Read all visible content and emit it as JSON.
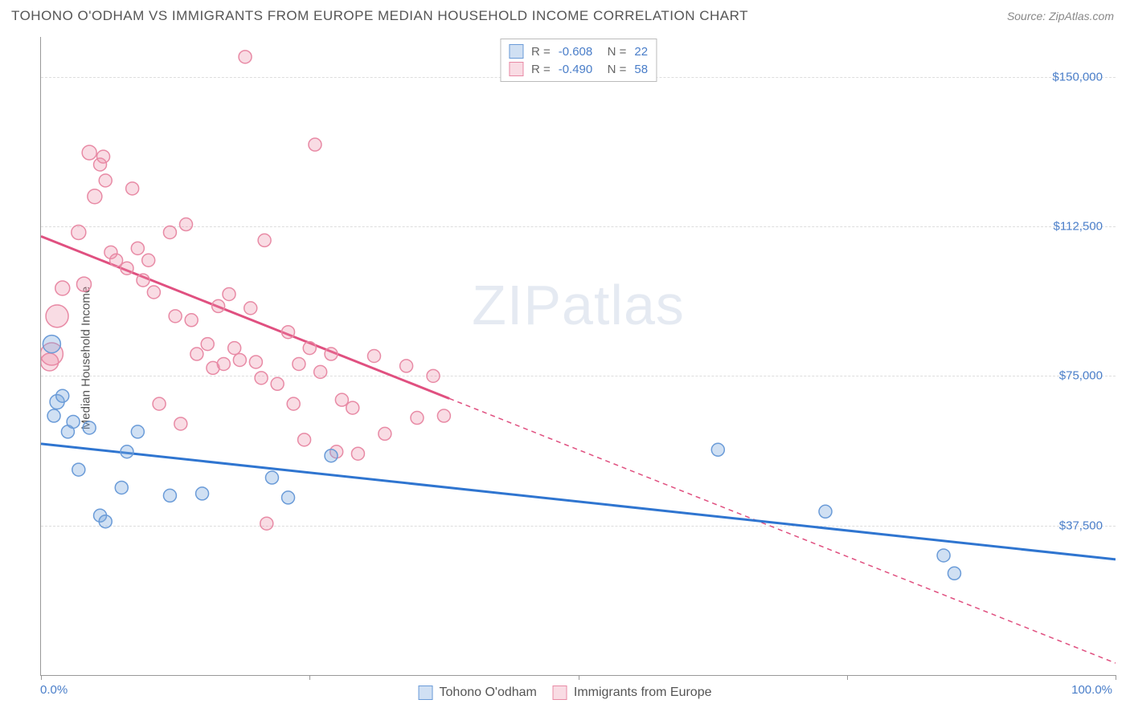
{
  "header": {
    "title": "TOHONO O'ODHAM VS IMMIGRANTS FROM EUROPE MEDIAN HOUSEHOLD INCOME CORRELATION CHART",
    "source_label": "Source: ",
    "source_value": "ZipAtlas.com"
  },
  "watermark": {
    "part1": "ZIP",
    "part2": "atlas"
  },
  "chart": {
    "type": "scatter",
    "xlim": [
      0,
      100
    ],
    "ylim": [
      0,
      160000
    ],
    "y_gridlines": [
      37500,
      75000,
      112500,
      150000
    ],
    "y_tick_labels": [
      "$37,500",
      "$75,000",
      "$112,500",
      "$150,000"
    ],
    "x_tick_labels": {
      "min": "0.0%",
      "max": "100.0%"
    },
    "x_minor_ticks": [
      0,
      25,
      50,
      75,
      100
    ],
    "y_axis_label": "Median Household Income",
    "background_color": "#ffffff",
    "grid_color": "#dddddd",
    "axis_color": "#999999",
    "ytick_color": "#4a7ec9",
    "series": [
      {
        "name": "Tohono O'odham",
        "color_fill": "rgba(120,165,220,0.35)",
        "color_stroke": "#6a9bd8",
        "trend_color": "#2f75d0",
        "R": "-0.608",
        "N": "22",
        "trend": {
          "x1": 0,
          "y1": 58000,
          "x2": 100,
          "y2": 29000,
          "solid_until_x": 100
        },
        "points": [
          {
            "x": 1.0,
            "y": 83000,
            "r": 11
          },
          {
            "x": 1.5,
            "y": 68500,
            "r": 9
          },
          {
            "x": 1.2,
            "y": 65000,
            "r": 8
          },
          {
            "x": 2.0,
            "y": 70000,
            "r": 8
          },
          {
            "x": 2.5,
            "y": 61000,
            "r": 8
          },
          {
            "x": 3.0,
            "y": 63500,
            "r": 8
          },
          {
            "x": 3.5,
            "y": 51500,
            "r": 8
          },
          {
            "x": 4.5,
            "y": 62000,
            "r": 8
          },
          {
            "x": 5.5,
            "y": 40000,
            "r": 8
          },
          {
            "x": 6.0,
            "y": 38500,
            "r": 8
          },
          {
            "x": 7.5,
            "y": 47000,
            "r": 8
          },
          {
            "x": 8.0,
            "y": 56000,
            "r": 8
          },
          {
            "x": 9.0,
            "y": 61000,
            "r": 8
          },
          {
            "x": 12.0,
            "y": 45000,
            "r": 8
          },
          {
            "x": 15.0,
            "y": 45500,
            "r": 8
          },
          {
            "x": 21.5,
            "y": 49500,
            "r": 8
          },
          {
            "x": 23.0,
            "y": 44500,
            "r": 8
          },
          {
            "x": 27.0,
            "y": 55000,
            "r": 8
          },
          {
            "x": 63.0,
            "y": 56500,
            "r": 8
          },
          {
            "x": 73.0,
            "y": 41000,
            "r": 8
          },
          {
            "x": 84.0,
            "y": 30000,
            "r": 8
          },
          {
            "x": 85.0,
            "y": 25500,
            "r": 8
          }
        ]
      },
      {
        "name": "Immigrants from Europe",
        "color_fill": "rgba(235,140,165,0.30)",
        "color_stroke": "#e88aa5",
        "trend_color": "#e05080",
        "R": "-0.490",
        "N": "58",
        "trend": {
          "x1": 0,
          "y1": 110000,
          "x2": 100,
          "y2": 3000,
          "solid_until_x": 38
        },
        "points": [
          {
            "x": 1.0,
            "y": 80500,
            "r": 14
          },
          {
            "x": 0.8,
            "y": 78500,
            "r": 11
          },
          {
            "x": 1.5,
            "y": 90000,
            "r": 14
          },
          {
            "x": 2.0,
            "y": 97000,
            "r": 9
          },
          {
            "x": 3.5,
            "y": 111000,
            "r": 9
          },
          {
            "x": 4.0,
            "y": 98000,
            "r": 9
          },
          {
            "x": 4.5,
            "y": 131000,
            "r": 9
          },
          {
            "x": 5.0,
            "y": 120000,
            "r": 9
          },
          {
            "x": 5.5,
            "y": 128000,
            "r": 8
          },
          {
            "x": 5.8,
            "y": 130000,
            "r": 8
          },
          {
            "x": 6.0,
            "y": 124000,
            "r": 8
          },
          {
            "x": 6.5,
            "y": 106000,
            "r": 8
          },
          {
            "x": 7.0,
            "y": 104000,
            "r": 8
          },
          {
            "x": 8.0,
            "y": 102000,
            "r": 8
          },
          {
            "x": 8.5,
            "y": 122000,
            "r": 8
          },
          {
            "x": 9.0,
            "y": 107000,
            "r": 8
          },
          {
            "x": 9.5,
            "y": 99000,
            "r": 8
          },
          {
            "x": 10.0,
            "y": 104000,
            "r": 8
          },
          {
            "x": 10.5,
            "y": 96000,
            "r": 8
          },
          {
            "x": 11.0,
            "y": 68000,
            "r": 8
          },
          {
            "x": 12.0,
            "y": 111000,
            "r": 8
          },
          {
            "x": 12.5,
            "y": 90000,
            "r": 8
          },
          {
            "x": 13.0,
            "y": 63000,
            "r": 8
          },
          {
            "x": 13.5,
            "y": 113000,
            "r": 8
          },
          {
            "x": 14.0,
            "y": 89000,
            "r": 8
          },
          {
            "x": 14.5,
            "y": 80500,
            "r": 8
          },
          {
            "x": 15.5,
            "y": 83000,
            "r": 8
          },
          {
            "x": 16.0,
            "y": 77000,
            "r": 8
          },
          {
            "x": 16.5,
            "y": 92500,
            "r": 8
          },
          {
            "x": 17.0,
            "y": 78000,
            "r": 8
          },
          {
            "x": 17.5,
            "y": 95500,
            "r": 8
          },
          {
            "x": 18.0,
            "y": 82000,
            "r": 8
          },
          {
            "x": 18.5,
            "y": 79000,
            "r": 8
          },
          {
            "x": 19.0,
            "y": 155000,
            "r": 8
          },
          {
            "x": 19.5,
            "y": 92000,
            "r": 8
          },
          {
            "x": 20.0,
            "y": 78500,
            "r": 8
          },
          {
            "x": 20.5,
            "y": 74500,
            "r": 8
          },
          {
            "x": 20.8,
            "y": 109000,
            "r": 8
          },
          {
            "x": 21.0,
            "y": 38000,
            "r": 8
          },
          {
            "x": 22.0,
            "y": 73000,
            "r": 8
          },
          {
            "x": 23.0,
            "y": 86000,
            "r": 8
          },
          {
            "x": 23.5,
            "y": 68000,
            "r": 8
          },
          {
            "x": 24.0,
            "y": 78000,
            "r": 8
          },
          {
            "x": 24.5,
            "y": 59000,
            "r": 8
          },
          {
            "x": 25.0,
            "y": 82000,
            "r": 8
          },
          {
            "x": 25.5,
            "y": 133000,
            "r": 8
          },
          {
            "x": 26.0,
            "y": 76000,
            "r": 8
          },
          {
            "x": 27.0,
            "y": 80500,
            "r": 8
          },
          {
            "x": 27.5,
            "y": 56000,
            "r": 8
          },
          {
            "x": 28.0,
            "y": 69000,
            "r": 8
          },
          {
            "x": 29.0,
            "y": 67000,
            "r": 8
          },
          {
            "x": 29.5,
            "y": 55500,
            "r": 8
          },
          {
            "x": 31.0,
            "y": 80000,
            "r": 8
          },
          {
            "x": 32.0,
            "y": 60500,
            "r": 8
          },
          {
            "x": 34.0,
            "y": 77500,
            "r": 8
          },
          {
            "x": 35.0,
            "y": 64500,
            "r": 8
          },
          {
            "x": 36.5,
            "y": 75000,
            "r": 8
          },
          {
            "x": 37.5,
            "y": 65000,
            "r": 8
          }
        ]
      }
    ]
  }
}
